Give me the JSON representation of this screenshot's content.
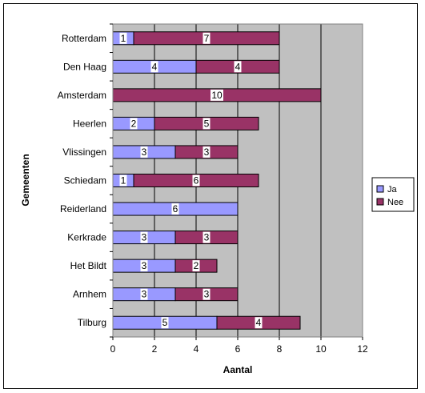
{
  "chart_data": {
    "type": "bar",
    "orientation": "horizontal",
    "stacked": true,
    "categories": [
      "Rotterdam",
      "Den Haag",
      "Amsterdam",
      "Heerlen",
      "Vlissingen",
      "Schiedam",
      "Reiderland",
      "Kerkrade",
      "Het Bildt",
      "Arnhem",
      "Tilburg"
    ],
    "series": [
      {
        "name": "Ja",
        "values": [
          1,
          4,
          0,
          2,
          3,
          1,
          6,
          3,
          3,
          3,
          5
        ],
        "color": "#9999ff"
      },
      {
        "name": "Nee",
        "values": [
          7,
          4,
          10,
          5,
          3,
          6,
          0,
          3,
          2,
          3,
          4
        ],
        "color": "#993366"
      }
    ],
    "xlabel": "Aantal",
    "ylabel": "Gemeenten",
    "xlim": [
      0,
      12
    ],
    "xticks": [
      0,
      2,
      4,
      6,
      8,
      10,
      12
    ],
    "grid": "vertical",
    "plot_background": "#c0c0c0",
    "legend_position": "right"
  }
}
